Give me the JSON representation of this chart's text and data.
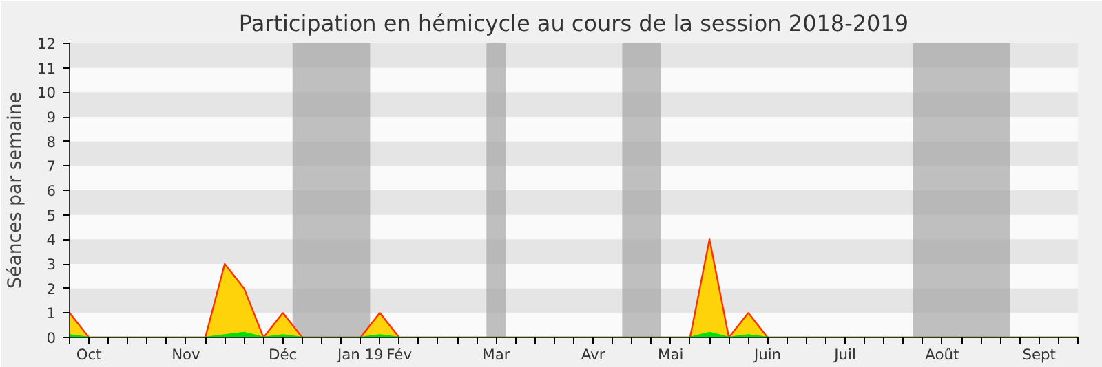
{
  "chart_data": {
    "type": "area",
    "title": "Participation en hémicycle au cours de la session 2018-2019",
    "ylabel": "Séances par semaine",
    "categories": [
      null,
      "Oct",
      null,
      null,
      null,
      null,
      "Nov",
      null,
      null,
      null,
      null,
      "Déc",
      null,
      null,
      null,
      "Jan 19",
      null,
      "Fév",
      null,
      null,
      null,
      null,
      "Mar",
      null,
      null,
      null,
      null,
      "Avr",
      null,
      null,
      null,
      "Mai",
      null,
      null,
      null,
      null,
      "Juin",
      null,
      null,
      null,
      "Juil",
      null,
      null,
      null,
      null,
      "Août",
      null,
      null,
      null,
      null,
      "Sept",
      null,
      null
    ],
    "series": [
      {
        "color": "#ffd30a",
        "values": [
          1,
          0,
          0,
          0,
          0,
          0,
          0,
          0,
          3,
          2,
          0,
          1,
          0,
          0,
          0,
          0,
          1,
          0,
          0,
          0,
          0,
          0,
          0,
          0,
          0,
          0,
          0,
          0,
          0,
          0,
          0,
          0,
          0,
          4,
          0,
          1,
          0,
          0,
          0,
          0,
          0,
          0,
          0,
          0,
          0,
          0,
          0,
          0,
          0,
          0,
          0,
          0,
          0
        ]
      },
      {
        "color": "#00e000",
        "values": [
          0.1,
          0,
          0,
          0,
          0,
          0,
          0,
          0,
          0.1,
          0.2,
          0,
          0.1,
          0,
          0,
          0,
          0,
          0.1,
          0,
          0,
          0,
          0,
          0,
          0,
          0,
          0,
          0,
          0,
          0,
          0,
          0,
          0,
          0,
          0,
          0.2,
          0,
          0.1,
          0,
          0,
          0,
          0,
          0,
          0,
          0,
          0,
          0,
          0,
          0,
          0,
          0,
          0,
          0,
          0,
          0
        ]
      }
    ],
    "ylim": [
      0,
      12
    ],
    "yticks": [
      0,
      1,
      2,
      3,
      4,
      5,
      6,
      7,
      8,
      9,
      10,
      11,
      12
    ]
  }
}
